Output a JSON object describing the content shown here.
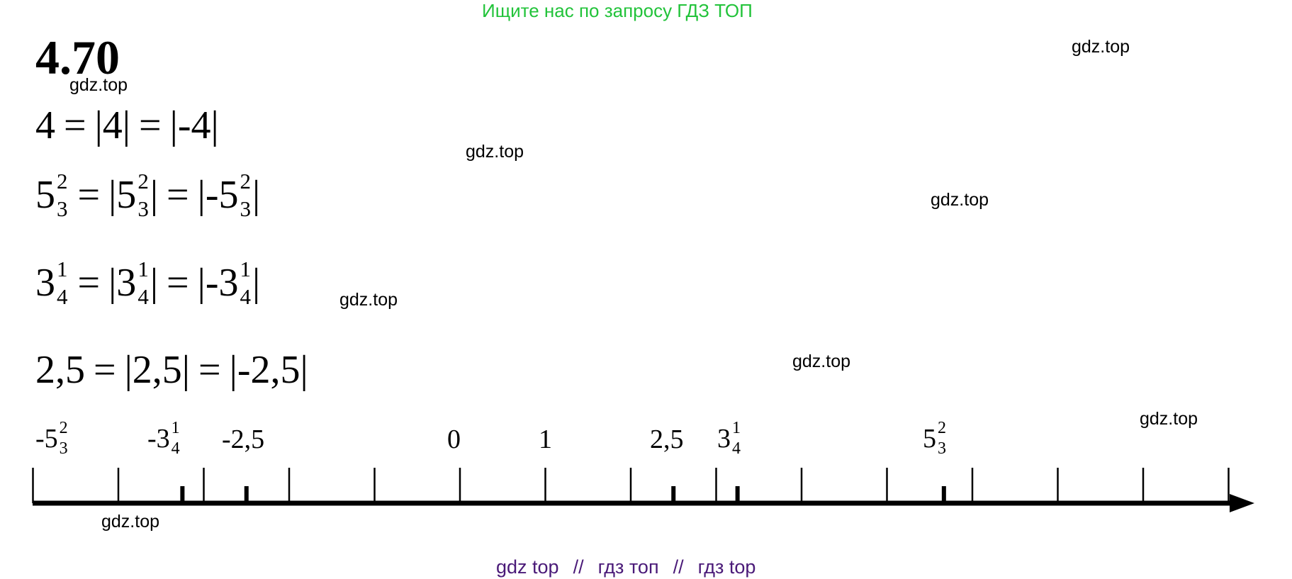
{
  "banner": "Ищите нас по запросу ГДЗ ТОП",
  "problem_number": "4.70",
  "watermark": "gdz.top",
  "equations": {
    "eq1": {
      "a": "4",
      "eq": "=",
      "b": "|4|",
      "c": "|-4|"
    },
    "eq2": {
      "whole": "5",
      "num": "2",
      "den": "3",
      "eq": "=",
      "abs_open": "|5",
      "abs_close": "|",
      "neg_open": "|-5"
    },
    "eq3": {
      "whole": "3",
      "num": "1",
      "den": "4",
      "eq": "=",
      "abs_open": "|3",
      "abs_close": "|",
      "neg_open": "|-3"
    },
    "eq4": {
      "a": "2,5",
      "eq": "=",
      "b": "|2,5|",
      "c": "|-2,5|"
    }
  },
  "number_line": {
    "labels": {
      "neg_5_2_3": {
        "whole": "-5",
        "num": "2",
        "den": "3"
      },
      "neg_3_1_4": {
        "whole": "-3",
        "num": "1",
        "den": "4"
      },
      "neg_2_5": "-2,5",
      "zero": "0",
      "one": "1",
      "pos_2_5": "2,5",
      "pos_3_1_4": {
        "whole": "3",
        "num": "1",
        "den": "4"
      },
      "pos_5_2_3": {
        "whole": "5",
        "num": "2",
        "den": "3"
      }
    },
    "unit_ticks": [
      -5,
      -4,
      -3,
      -2,
      -1,
      0,
      1,
      2,
      3,
      4,
      5,
      6,
      7,
      8,
      9
    ],
    "marked_points": [
      -5.6667,
      -3.25,
      -2.5,
      2.5,
      3.25,
      5.6667
    ]
  },
  "footer": {
    "part1": "gdz top",
    "sep1": "//",
    "part2": "гдз топ",
    "sep2": "//",
    "part3": "гдз top"
  }
}
